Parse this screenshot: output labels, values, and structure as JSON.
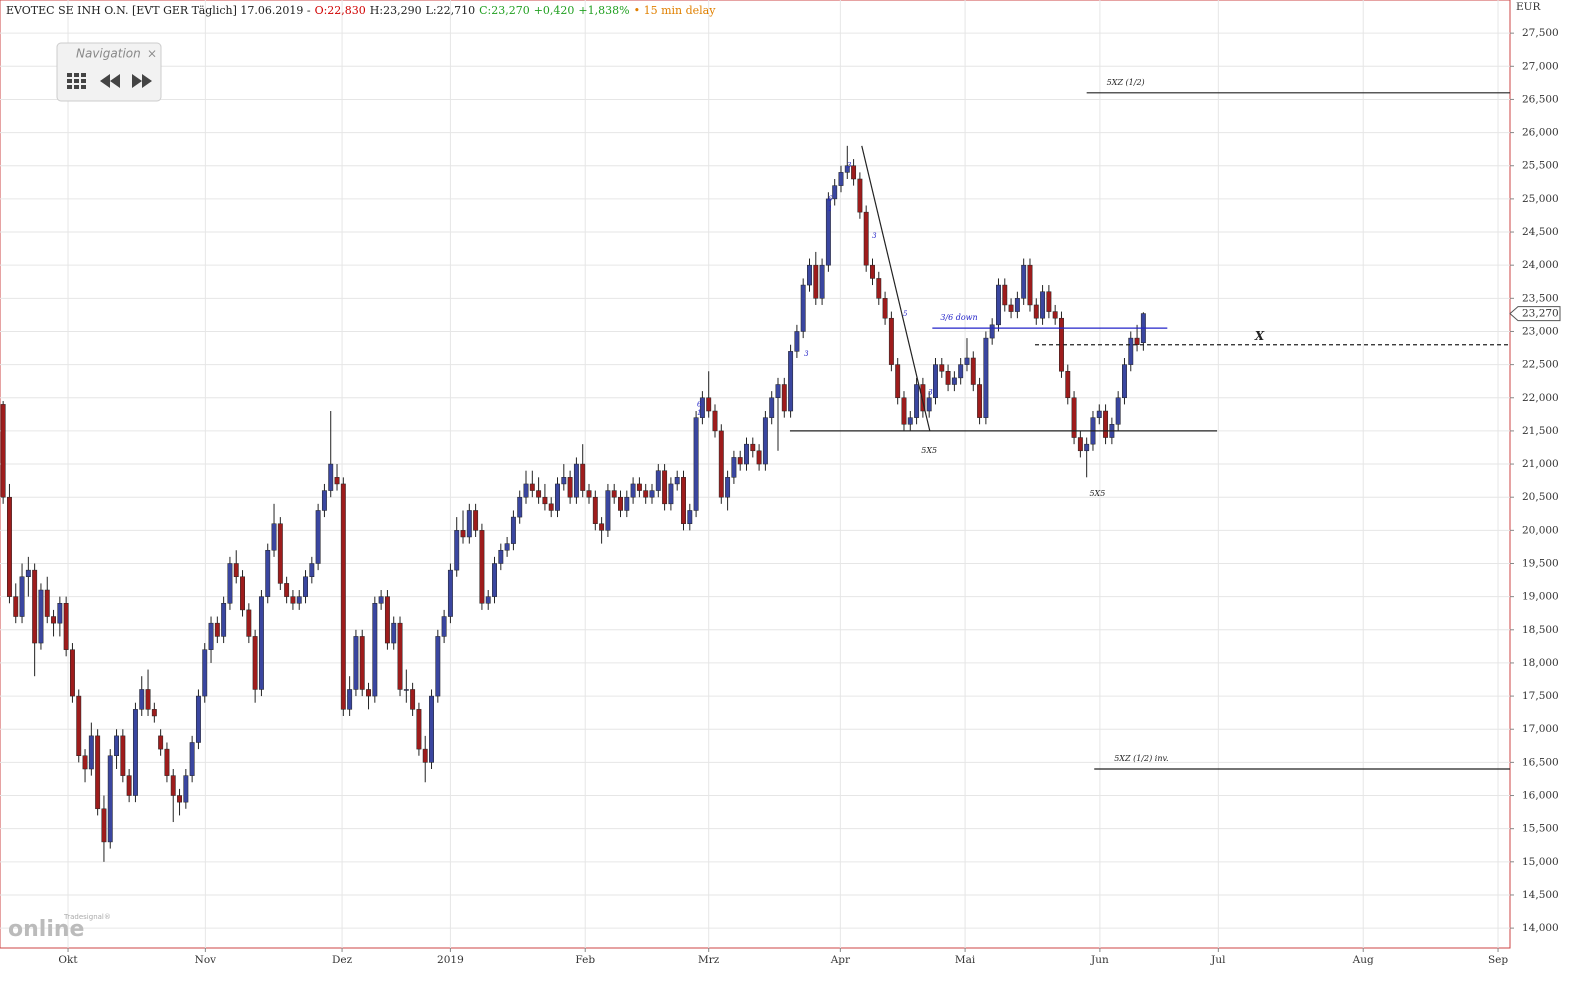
{
  "chart_data": {
    "type": "candlestick",
    "header": [
      {
        "text": "EVOTEC SE INH O.N. [EVT GER Täglich] 17.06.2019 -",
        "color": "#222222"
      },
      {
        "text": "O:22,830",
        "color": "#d00000"
      },
      {
        "text": "H:23,290",
        "color": "#222222"
      },
      {
        "text": "L:22,710",
        "color": "#222222"
      },
      {
        "text": "C:23,270",
        "color": "#22a022"
      },
      {
        "text": "+0,420",
        "color": "#22a022"
      },
      {
        "text": "+1,838%",
        "color": "#22a022"
      },
      {
        "text": "• 15 min delay",
        "color": "#e08000"
      }
    ],
    "y_unit": "EUR",
    "last_price": {
      "value": 23270,
      "label": "23,270"
    },
    "up_color": "#3a46a0",
    "down_color": "#9e1c1c",
    "ylim": [
      13700,
      28000
    ],
    "yticks": [
      {
        "value": 14000,
        "label": "14,000"
      },
      {
        "value": 14500,
        "label": "14,500"
      },
      {
        "value": 15000,
        "label": "15,000"
      },
      {
        "value": 15500,
        "label": "15,500"
      },
      {
        "value": 16000,
        "label": "16,000"
      },
      {
        "value": 16500,
        "label": "16,500"
      },
      {
        "value": 17000,
        "label": "17,000"
      },
      {
        "value": 17500,
        "label": "17,500"
      },
      {
        "value": 18000,
        "label": "18,000"
      },
      {
        "value": 18500,
        "label": "18,500"
      },
      {
        "value": 19000,
        "label": "19,000"
      },
      {
        "value": 19500,
        "label": "19,500"
      },
      {
        "value": 20000,
        "label": "20,000"
      },
      {
        "value": 20500,
        "label": "20,500"
      },
      {
        "value": 21000,
        "label": "21,000"
      },
      {
        "value": 21500,
        "label": "21,500"
      },
      {
        "value": 22000,
        "label": "22,000"
      },
      {
        "value": 22500,
        "label": "22,500"
      },
      {
        "value": 23000,
        "label": "23,000"
      },
      {
        "value": 23500,
        "label": "23,500"
      },
      {
        "value": 24000,
        "label": "24,000"
      },
      {
        "value": 24500,
        "label": "24,500"
      },
      {
        "value": 25000,
        "label": "25,000"
      },
      {
        "value": 25500,
        "label": "25,500"
      },
      {
        "value": 26000,
        "label": "26,000"
      },
      {
        "value": 26500,
        "label": "26,500"
      },
      {
        "value": 27000,
        "label": "27,000"
      },
      {
        "value": 27500,
        "label": "27,500"
      }
    ],
    "xlim": [
      -0.5,
      239.2
    ],
    "xticks": [
      {
        "value": 10.3,
        "label": "Okt"
      },
      {
        "value": 32.1,
        "label": "Nov"
      },
      {
        "value": 53.8,
        "label": "Dez"
      },
      {
        "value": 71,
        "label": "2019"
      },
      {
        "value": 92.4,
        "label": "Feb"
      },
      {
        "value": 112,
        "label": "Mrz"
      },
      {
        "value": 132.9,
        "label": "Apr"
      },
      {
        "value": 152.7,
        "label": "Mai"
      },
      {
        "value": 174.1,
        "label": "Jun"
      },
      {
        "value": 192.9,
        "label": "Jul"
      },
      {
        "value": 215.9,
        "label": "Aug"
      },
      {
        "value": 237.3,
        "label": "Sep"
      }
    ],
    "grid": true,
    "ohlc": [
      [
        21900,
        21950,
        20400,
        20500
      ],
      [
        20500,
        20700,
        18900,
        19000
      ],
      [
        19000,
        19200,
        18600,
        18700
      ],
      [
        18700,
        19500,
        18600,
        19300
      ],
      [
        19300,
        19600,
        19000,
        19400
      ],
      [
        19400,
        19500,
        17800,
        18300
      ],
      [
        18300,
        19200,
        18200,
        19100
      ],
      [
        19100,
        19300,
        18600,
        18700
      ],
      [
        18700,
        18800,
        18400,
        18600
      ],
      [
        18600,
        19000,
        18400,
        18900
      ],
      [
        18900,
        19000,
        18100,
        18200
      ],
      [
        18200,
        18300,
        17400,
        17500
      ],
      [
        17500,
        17600,
        16500,
        16600
      ],
      [
        16600,
        16700,
        16200,
        16400
      ],
      [
        16400,
        17100,
        16300,
        16900
      ],
      [
        16900,
        17000,
        15700,
        15800
      ],
      [
        15800,
        16000,
        15000,
        15300
      ],
      [
        15300,
        16700,
        15200,
        16600
      ],
      [
        16600,
        17000,
        16400,
        16900
      ],
      [
        16900,
        17000,
        16200,
        16300
      ],
      [
        16300,
        16400,
        15900,
        16000
      ],
      [
        16000,
        17400,
        15900,
        17300
      ],
      [
        17300,
        17800,
        17200,
        17600
      ],
      [
        17600,
        17900,
        17200,
        17300
      ],
      [
        17300,
        17400,
        17100,
        17200
      ],
      [
        16900,
        17000,
        16600,
        16700
      ],
      [
        16700,
        16800,
        16200,
        16300
      ],
      [
        16300,
        16400,
        15600,
        16000
      ],
      [
        16000,
        16100,
        15700,
        15900
      ],
      [
        15900,
        16400,
        15800,
        16300
      ],
      [
        16300,
        16900,
        16200,
        16800
      ],
      [
        16800,
        17600,
        16700,
        17500
      ],
      [
        17500,
        18300,
        17400,
        18200
      ],
      [
        18200,
        18700,
        18000,
        18600
      ],
      [
        18600,
        18700,
        18300,
        18400
      ],
      [
        18400,
        19000,
        18300,
        18900
      ],
      [
        18900,
        19600,
        18800,
        19500
      ],
      [
        19500,
        19700,
        19200,
        19300
      ],
      [
        19300,
        19400,
        18700,
        18800
      ],
      [
        18800,
        18900,
        18300,
        18400
      ],
      [
        18400,
        18500,
        17400,
        17600
      ],
      [
        17600,
        19100,
        17500,
        19000
      ],
      [
        19000,
        19800,
        18900,
        19700
      ],
      [
        19700,
        20400,
        19600,
        20100
      ],
      [
        20100,
        20200,
        19100,
        19200
      ],
      [
        19200,
        19300,
        18900,
        19000
      ],
      [
        19000,
        19100,
        18800,
        18900
      ],
      [
        18900,
        19100,
        18800,
        19000
      ],
      [
        19000,
        19400,
        18900,
        19300
      ],
      [
        19300,
        19600,
        19200,
        19500
      ],
      [
        19500,
        20400,
        19400,
        20300
      ],
      [
        20300,
        20700,
        20200,
        20600
      ],
      [
        20600,
        21800,
        20500,
        21000
      ],
      [
        20800,
        21000,
        20600,
        20700
      ],
      [
        20700,
        20800,
        17200,
        17300
      ],
      [
        17300,
        17800,
        17200,
        17600
      ],
      [
        17600,
        18500,
        17500,
        18400
      ],
      [
        18400,
        18500,
        17500,
        17600
      ],
      [
        17600,
        17700,
        17300,
        17500
      ],
      [
        17500,
        19000,
        17400,
        18900
      ],
      [
        18900,
        19100,
        18800,
        19000
      ],
      [
        19000,
        19100,
        18200,
        18300
      ],
      [
        18300,
        18700,
        18200,
        18600
      ],
      [
        18600,
        18700,
        17500,
        17600
      ],
      [
        17600,
        17900,
        17400,
        17600
      ],
      [
        17600,
        17700,
        17200,
        17300
      ],
      [
        17300,
        17400,
        16600,
        16700
      ],
      [
        16700,
        16900,
        16200,
        16500
      ],
      [
        16500,
        17600,
        16400,
        17500
      ],
      [
        17500,
        18500,
        17400,
        18400
      ],
      [
        18400,
        18800,
        18300,
        18700
      ],
      [
        18700,
        19500,
        18600,
        19400
      ],
      [
        19400,
        20200,
        19300,
        20000
      ],
      [
        20000,
        20300,
        19800,
        19900
      ],
      [
        19900,
        20400,
        19800,
        20300
      ],
      [
        20300,
        20400,
        19900,
        20000
      ],
      [
        20000,
        20100,
        18800,
        18900
      ],
      [
        18900,
        19100,
        18800,
        19000
      ],
      [
        19000,
        19600,
        18900,
        19500
      ],
      [
        19500,
        19800,
        19400,
        19700
      ],
      [
        19700,
        19900,
        19600,
        19800
      ],
      [
        19800,
        20300,
        19700,
        20200
      ],
      [
        20200,
        20600,
        20100,
        20500
      ],
      [
        20500,
        20900,
        20400,
        20700
      ],
      [
        20700,
        20900,
        20500,
        20600
      ],
      [
        20600,
        20800,
        20400,
        20500
      ],
      [
        20500,
        20700,
        20300,
        20400
      ],
      [
        20400,
        20500,
        20200,
        20300
      ],
      [
        20300,
        20800,
        20200,
        20700
      ],
      [
        20700,
        21000,
        20600,
        20800
      ],
      [
        20800,
        20900,
        20400,
        20500
      ],
      [
        20500,
        21100,
        20400,
        21000
      ],
      [
        21000,
        21300,
        20500,
        20600
      ],
      [
        20600,
        20700,
        20400,
        20500
      ],
      [
        20500,
        20600,
        20000,
        20100
      ],
      [
        20100,
        20200,
        19800,
        20000
      ],
      [
        20000,
        20700,
        19900,
        20600
      ],
      [
        20600,
        20700,
        20400,
        20500
      ],
      [
        20500,
        20600,
        20200,
        20300
      ],
      [
        20300,
        20600,
        20200,
        20500
      ],
      [
        20500,
        20800,
        20400,
        20700
      ],
      [
        20700,
        20800,
        20500,
        20600
      ],
      [
        20600,
        20700,
        20400,
        20500
      ],
      [
        20500,
        20700,
        20400,
        20600
      ],
      [
        20600,
        21000,
        20500,
        20900
      ],
      [
        20900,
        21000,
        20300,
        20400
      ],
      [
        20400,
        20800,
        20300,
        20700
      ],
      [
        20700,
        20900,
        20600,
        20800
      ],
      [
        20800,
        20900,
        20000,
        20100
      ],
      [
        20100,
        20400,
        20000,
        20300
      ],
      [
        20300,
        21800,
        20200,
        21700
      ],
      [
        21700,
        22100,
        21600,
        22000
      ],
      [
        22000,
        22400,
        21700,
        21800
      ],
      [
        21800,
        21900,
        21400,
        21500
      ],
      [
        21500,
        21600,
        20400,
        20500
      ],
      [
        20500,
        20900,
        20300,
        20800
      ],
      [
        20800,
        21200,
        20700,
        21100
      ],
      [
        21100,
        21200,
        20900,
        21000
      ],
      [
        21000,
        21400,
        20900,
        21300
      ],
      [
        21300,
        21400,
        21100,
        21200
      ],
      [
        21200,
        21300,
        20900,
        21000
      ],
      [
        21000,
        21800,
        20900,
        21700
      ],
      [
        21700,
        22100,
        21600,
        22000
      ],
      [
        22000,
        22300,
        21200,
        22200
      ],
      [
        22200,
        22300,
        21700,
        21800
      ],
      [
        21800,
        22800,
        21700,
        22700
      ],
      [
        22700,
        23100,
        22600,
        23000
      ],
      [
        23000,
        23800,
        22900,
        23700
      ],
      [
        23700,
        24100,
        23600,
        24000
      ],
      [
        24000,
        24200,
        23400,
        23500
      ],
      [
        23500,
        24100,
        23400,
        24000
      ],
      [
        24000,
        25100,
        23900,
        25000
      ],
      [
        25000,
        25300,
        24900,
        25200
      ],
      [
        25200,
        25500,
        25100,
        25400
      ],
      [
        25400,
        25800,
        25300,
        25500
      ],
      [
        25500,
        25600,
        25200,
        25300
      ],
      [
        25300,
        25400,
        24700,
        24800
      ],
      [
        24800,
        24900,
        23900,
        24000
      ],
      [
        24000,
        24100,
        23700,
        23800
      ],
      [
        23800,
        23900,
        23400,
        23500
      ],
      [
        23500,
        23600,
        23100,
        23200
      ],
      [
        23200,
        23300,
        22400,
        22500
      ],
      [
        22500,
        22600,
        21900,
        22000
      ],
      [
        22000,
        22100,
        21500,
        21600
      ],
      [
        21600,
        21800,
        21500,
        21700
      ],
      [
        21700,
        22300,
        21600,
        22200
      ],
      [
        22200,
        22300,
        21700,
        21800
      ],
      [
        21800,
        22100,
        21700,
        22000
      ],
      [
        22000,
        22600,
        21900,
        22500
      ],
      [
        22500,
        22600,
        22300,
        22400
      ],
      [
        22400,
        22500,
        22100,
        22200
      ],
      [
        22200,
        22400,
        22100,
        22300
      ],
      [
        22300,
        22600,
        22200,
        22500
      ],
      [
        22500,
        22900,
        22400,
        22600
      ],
      [
        22600,
        22700,
        22100,
        22200
      ],
      [
        22200,
        22300,
        21600,
        21700
      ],
      [
        21700,
        23000,
        21600,
        22900
      ],
      [
        22900,
        23200,
        22800,
        23100
      ],
      [
        23100,
        23800,
        23000,
        23700
      ],
      [
        23700,
        23800,
        23300,
        23400
      ],
      [
        23400,
        23500,
        23200,
        23300
      ],
      [
        23300,
        23600,
        23200,
        23500
      ],
      [
        23500,
        24100,
        23400,
        24000
      ],
      [
        24000,
        24100,
        23300,
        23400
      ],
      [
        23400,
        23500,
        23100,
        23200
      ],
      [
        23200,
        23700,
        23100,
        23600
      ],
      [
        23600,
        23700,
        23200,
        23300
      ],
      [
        23300,
        23400,
        23100,
        23200
      ],
      [
        23200,
        23300,
        22300,
        22400
      ],
      [
        22400,
        22500,
        21900,
        22000
      ],
      [
        22000,
        22100,
        21300,
        21400
      ],
      [
        21400,
        21500,
        21100,
        21200
      ],
      [
        21200,
        21400,
        20800,
        21300
      ],
      [
        21300,
        21800,
        21200,
        21700
      ],
      [
        21700,
        21900,
        21600,
        21800
      ],
      [
        21800,
        21900,
        21300,
        21400
      ],
      [
        21400,
        21700,
        21300,
        21600
      ],
      [
        21600,
        22100,
        21500,
        22000
      ],
      [
        22000,
        22600,
        21900,
        22500
      ],
      [
        22500,
        23000,
        22400,
        22900
      ],
      [
        22900,
        23100,
        22700,
        22800
      ],
      [
        22830,
        23290,
        22710,
        23270
      ]
    ],
    "hlines": [
      {
        "label": "5XZ (1/2)",
        "y": 26600,
        "x0": 172,
        "color": "#222222",
        "dash": false
      },
      {
        "label": "5XZ (1/2) inv.",
        "y": 16400,
        "x0": 173.2,
        "color": "#222222",
        "dash": false
      },
      {
        "label": "3/6 down",
        "y": 23050,
        "x0": 147.5,
        "x1": 184.8,
        "color": "#2323c8",
        "dash": false
      },
      {
        "label": "X",
        "y": 22800,
        "x0": 163.8,
        "label_x": 198.7,
        "color": "#222222",
        "dash": true
      },
      {
        "y": 21500,
        "x0": 124.9,
        "x1": 192.7,
        "color": "#222222",
        "dash": false
      }
    ],
    "trendline": {
      "x": [
        136.3,
        147.1
      ],
      "y": [
        25800,
        21500
      ]
    },
    "notes": [
      {
        "label": "5X5",
        "x": 147,
        "y": 21200
      },
      {
        "label": "5X5",
        "x": 173.7,
        "y": 20550
      }
    ],
    "markers": [
      {
        "label": "3",
        "x": 134.3,
        "y": 25500
      },
      {
        "label": "6",
        "x": 131.3,
        "y": 25000
      },
      {
        "label": "1",
        "x": 131.3,
        "y": 24850
      },
      {
        "label": "3",
        "x": 138.3,
        "y": 24440
      },
      {
        "label": "5",
        "x": 143.2,
        "y": 23260
      },
      {
        "label": "3",
        "x": 127.5,
        "y": 22660
      },
      {
        "label": "6",
        "x": 110.5,
        "y": 21900
      },
      {
        "label": "1",
        "x": 110.5,
        "y": 21770
      },
      {
        "label": "3",
        "x": 147.2,
        "y": 22080
      }
    ]
  },
  "ui": {
    "nav_title": "Navigation",
    "nav_close": "×",
    "logo_brand": "Tradesignal®",
    "logo_text": "online"
  }
}
